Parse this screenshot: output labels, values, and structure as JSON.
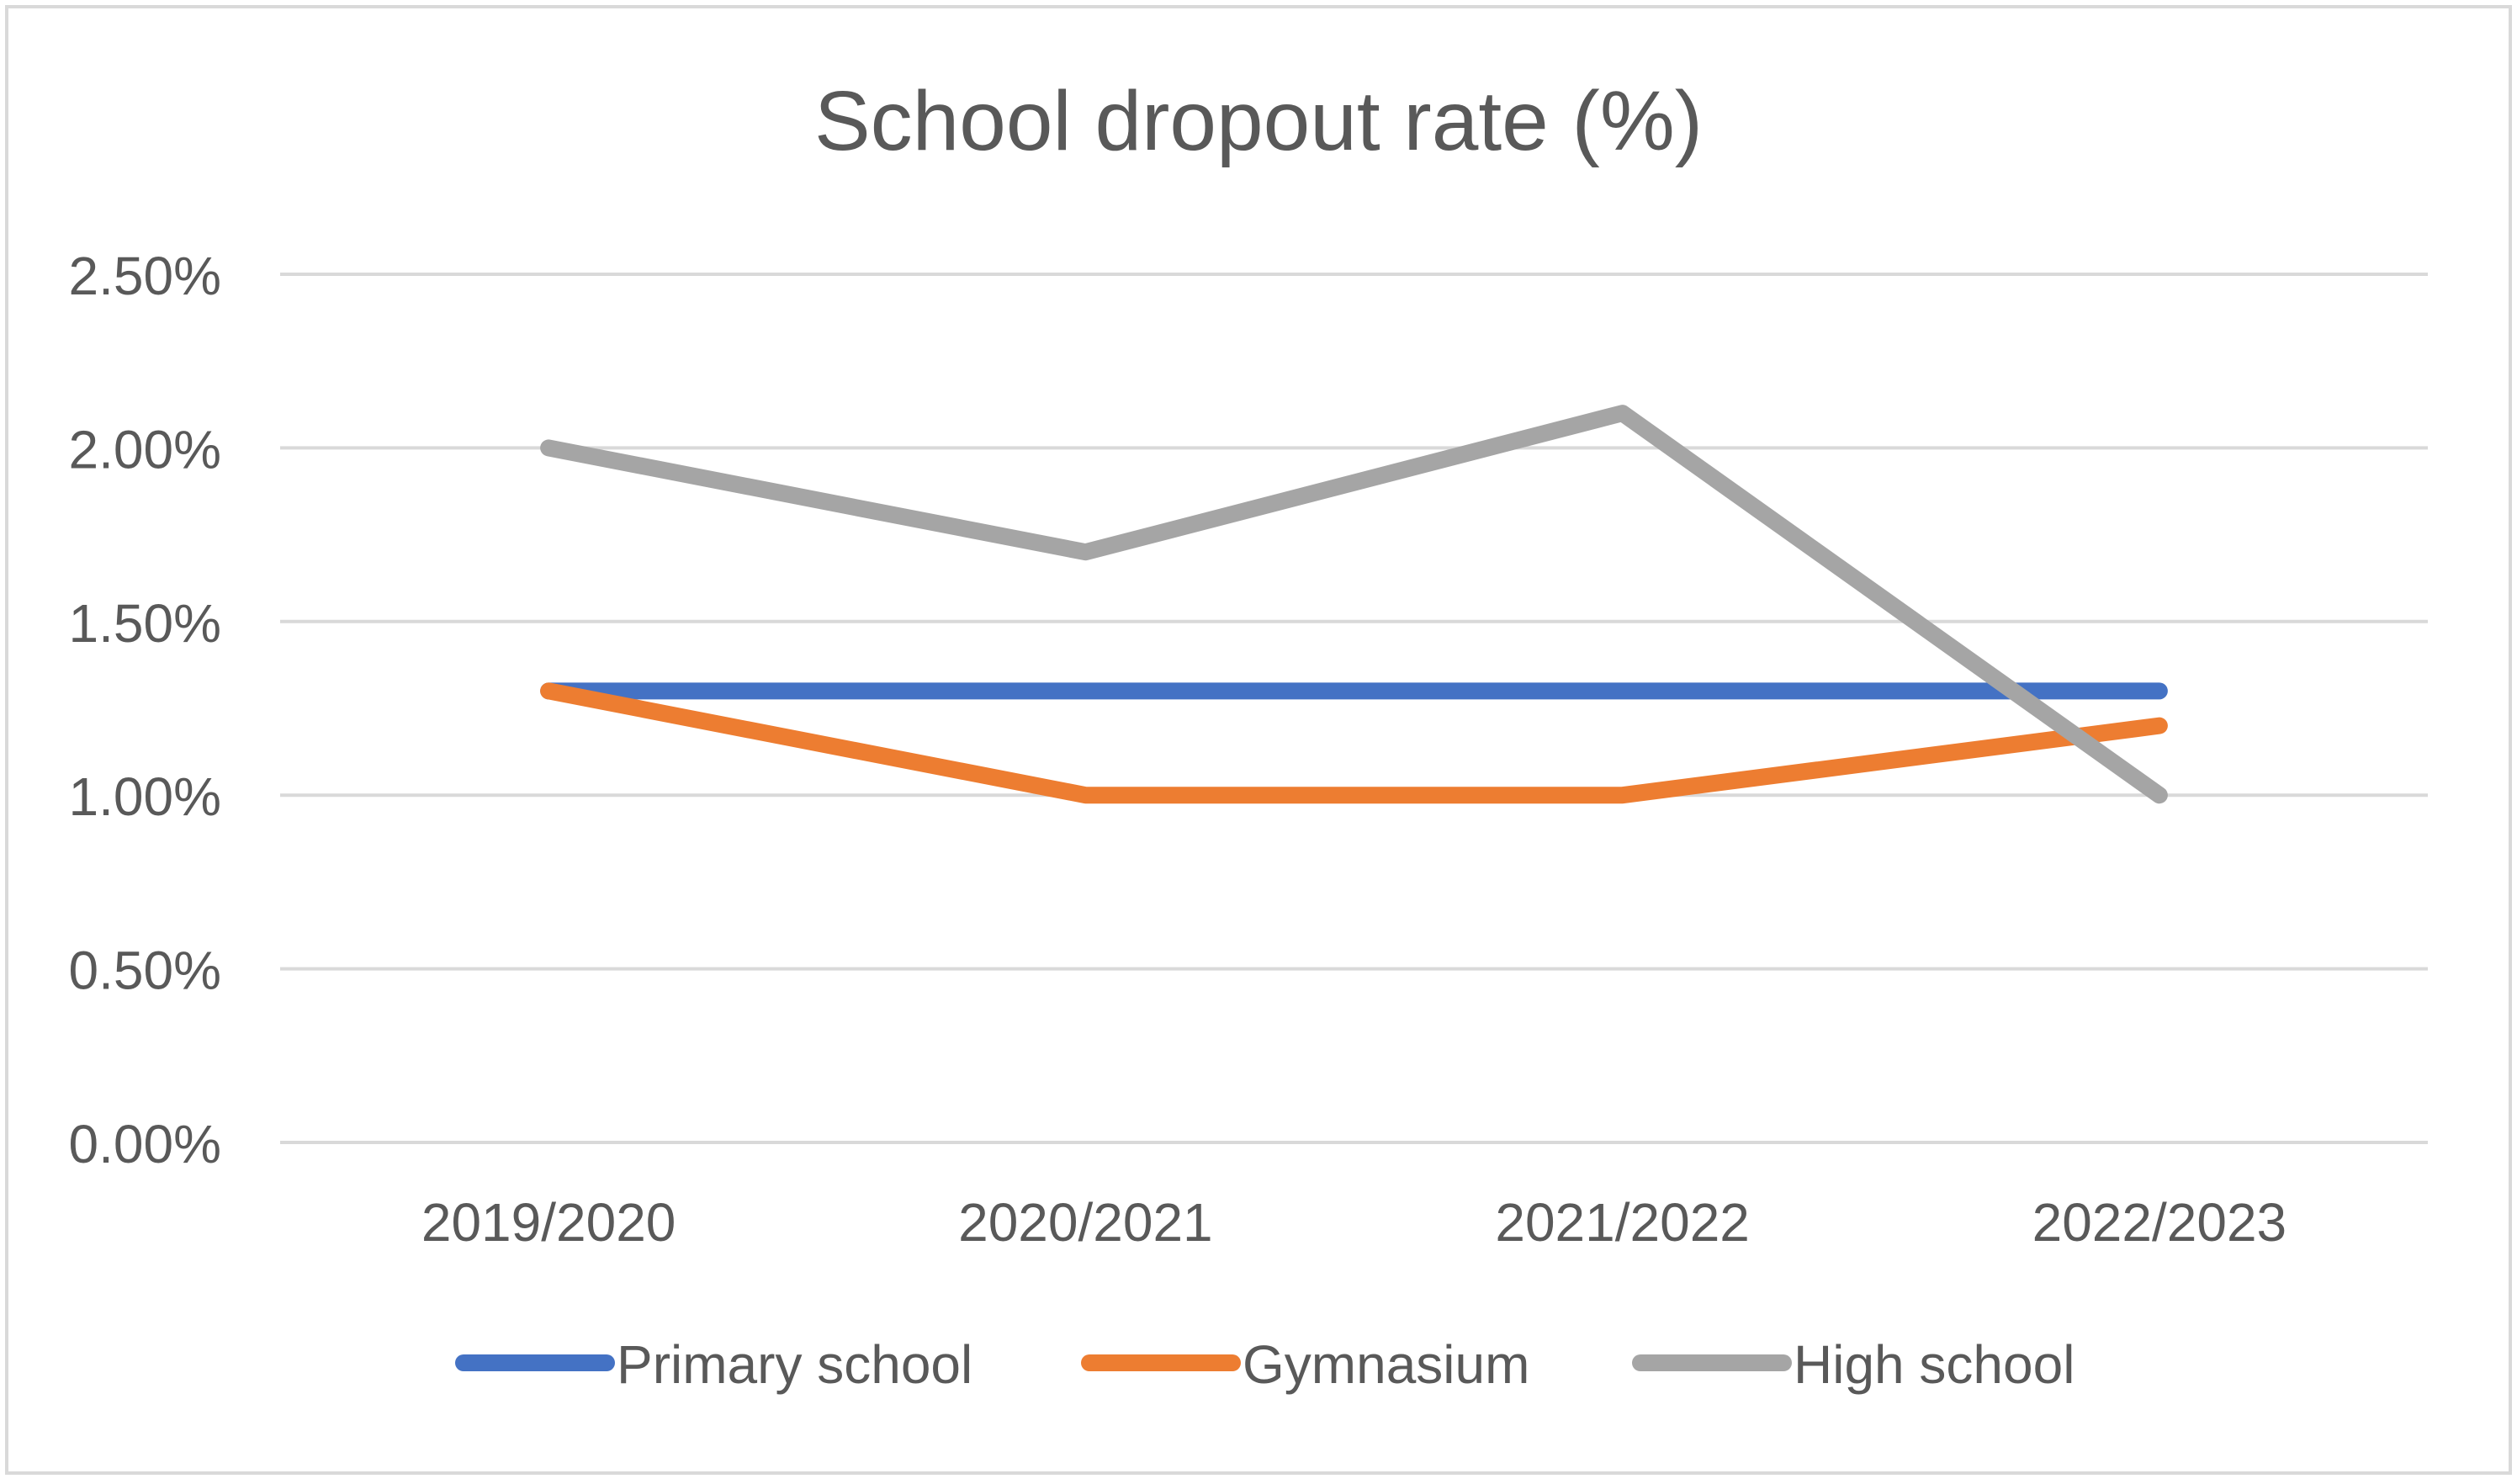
{
  "chart_data": {
    "type": "line",
    "title": "School dropout rate (%)",
    "xlabel": "",
    "ylabel": "",
    "categories": [
      "2019/2020",
      "2020/2021",
      "2021/2022",
      "2022/2023"
    ],
    "ylim": [
      0,
      2.5
    ],
    "yticks": [
      0,
      0.5,
      1.0,
      1.5,
      2.0,
      2.5
    ],
    "ytick_labels": [
      "0.00%",
      "0.50%",
      "1.00%",
      "1.50%",
      "2.00%",
      "2.50%"
    ],
    "grid": true,
    "legend_position": "bottom",
    "series": [
      {
        "name": "Primary school",
        "color": "#4472C4",
        "values": [
          1.3,
          1.3,
          1.3,
          1.3
        ]
      },
      {
        "name": "Gymnasium",
        "color": "#ED7D31",
        "values": [
          1.3,
          1.0,
          1.0,
          1.2
        ]
      },
      {
        "name": "High school",
        "color": "#A5A5A5",
        "values": [
          2.0,
          1.7,
          2.1,
          1.0
        ]
      }
    ],
    "colors": {
      "title": "#595959",
      "axis_text": "#595959",
      "gridline": "#D9D9D9",
      "frame": "#D9D9D9"
    }
  }
}
